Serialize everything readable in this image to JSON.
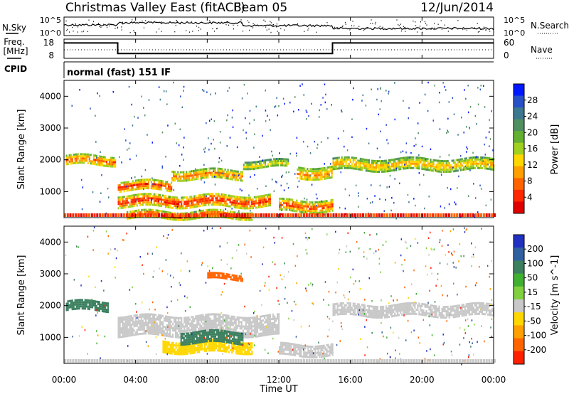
{
  "chart_data": {
    "type": "heatmap",
    "title": "Christmas Valley East (fitACF)",
    "beam_label": "Beam 05",
    "date": "12/Jun/2014",
    "xlabel": "Time UT",
    "x_ticks": [
      "00:00",
      "04:00",
      "08:00",
      "12:00",
      "16:00",
      "20:00",
      "00:00"
    ],
    "xlim_hours": [
      0,
      24
    ],
    "noise_panel": {
      "left_label": "N.Sky",
      "right_label": "N.Search",
      "left_ticks": [
        "10^5",
        "10^0"
      ],
      "right_ticks": [
        "10^5",
        "10^0"
      ]
    },
    "freq_panel": {
      "left_label_1": "Freq.",
      "left_label_2": "[MHz]",
      "right_label": "Nave",
      "left_ticks": [
        "18",
        "8"
      ],
      "right_ticks": [
        "60",
        "0"
      ],
      "segments": [
        {
          "start": 0,
          "end": 3,
          "freq": 16
        },
        {
          "start": 3,
          "end": 15,
          "freq": 10.5
        },
        {
          "start": 15,
          "end": 24,
          "freq": 16
        }
      ]
    },
    "cpid_panel": {
      "label": "CPID",
      "text": "normal (fast) 151 IF"
    },
    "power_panel": {
      "ylabel": "Slant Range [km]",
      "y_ticks": [
        1000,
        2000,
        3000,
        4000
      ],
      "ylim": [
        180,
        4500
      ],
      "colorbar_label": "Power [dB]",
      "colorbar_ticks": [
        "28",
        "24",
        "20",
        "16",
        "12",
        "8",
        "4"
      ],
      "colorbar_colors": [
        "#0018ff",
        "#2850c8",
        "#3c7890",
        "#509060",
        "#64b032",
        "#a0d020",
        "#ffd700",
        "#ffa000",
        "#ff6400",
        "#ff2800",
        "#e00000"
      ],
      "bands": [
        {
          "t0": 0.1,
          "t1": 2.9,
          "r0": 1850,
          "r1": 2150,
          "level": 0.82
        },
        {
          "t0": 3.0,
          "t1": 6.0,
          "r0": 1050,
          "r1": 1350,
          "level": 0.9
        },
        {
          "t0": 6.0,
          "t1": 10.0,
          "r0": 1400,
          "r1": 1700,
          "level": 0.78
        },
        {
          "t0": 10.0,
          "t1": 12.5,
          "r0": 1750,
          "r1": 2000,
          "level": 0.6
        },
        {
          "t0": 3.0,
          "t1": 11.5,
          "r0": 550,
          "r1": 900,
          "level": 0.92
        },
        {
          "t0": 3.5,
          "t1": 10.5,
          "r0": 180,
          "r1": 400,
          "level": 0.88
        },
        {
          "t0": 12.0,
          "t1": 15.0,
          "r0": 400,
          "r1": 750,
          "level": 0.85
        },
        {
          "t0": 13.0,
          "t1": 15.0,
          "r0": 1400,
          "r1": 1800,
          "level": 0.75
        },
        {
          "t0": 15.0,
          "t1": 24.0,
          "r0": 1700,
          "r1": 2050,
          "level": 0.7
        }
      ]
    },
    "velocity_panel": {
      "ylabel": "Slant Range [km]",
      "y_ticks": [
        1000,
        2000,
        3000,
        4000
      ],
      "ylim": [
        180,
        4500
      ],
      "colorbar_label": "Velocity [m s^-1]",
      "colorbar_ticks": [
        "200",
        "100",
        "50",
        "15",
        "-15",
        "-50",
        "-100",
        "-200"
      ],
      "colorbar_colors": [
        "#2030c0",
        "#3060a0",
        "#3c8060",
        "#40b030",
        "#80d040",
        "#c8c8c8",
        "#ffd700",
        "#ffa000",
        "#ff6400",
        "#ff2000"
      ],
      "bands": [
        {
          "t0": 0.1,
          "t1": 2.5,
          "r0": 1850,
          "r1": 2150,
          "vel": 40
        },
        {
          "t0": 3.0,
          "t1": 12.0,
          "r0": 1050,
          "r1": 1700,
          "vel": 0
        },
        {
          "t0": 5.5,
          "t1": 10.5,
          "r0": 550,
          "r1": 900,
          "vel": -30
        },
        {
          "t0": 6.5,
          "t1": 10.0,
          "r0": 850,
          "r1": 1200,
          "vel": 40
        },
        {
          "t0": 8.0,
          "t1": 10.0,
          "r0": 2800,
          "r1": 3000,
          "vel": -150
        },
        {
          "t0": 12.0,
          "t1": 15.0,
          "r0": 400,
          "r1": 800,
          "vel": 0
        },
        {
          "t0": 15.0,
          "t1": 24.0,
          "r0": 1650,
          "r1": 2050,
          "vel": 0
        }
      ]
    }
  }
}
